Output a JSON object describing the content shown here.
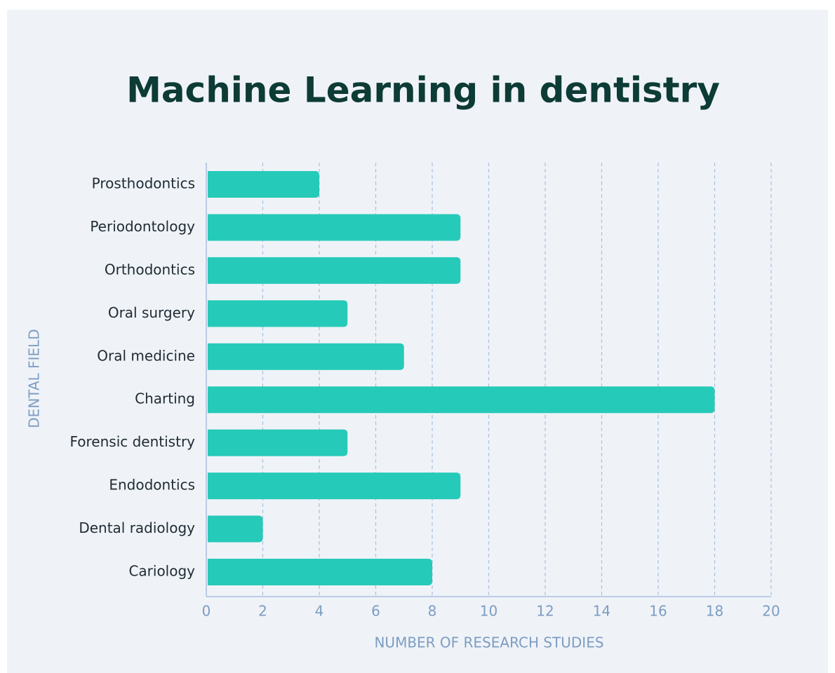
{
  "chart_data": {
    "type": "bar",
    "orientation": "horizontal",
    "title": "Machine Learning in dentistry",
    "x_label": "NUMBER OF RESEARCH STUDIES",
    "y_label": "DENTAL FIELD",
    "categories": [
      "Prosthodontics",
      "Periodontology",
      "Orthodontics",
      "Oral surgery",
      "Oral medicine",
      "Charting",
      "Forensic dentistry",
      "Endodontics",
      "Dental radiology",
      "Cariology"
    ],
    "values": [
      4,
      9,
      9,
      5,
      7,
      18,
      5,
      9,
      2,
      8
    ],
    "color": "#26cab8",
    "xlim": [
      0,
      20
    ],
    "xticks": [
      0,
      2,
      4,
      6,
      8,
      10,
      12,
      14,
      16,
      18,
      20
    ],
    "grid": true
  }
}
